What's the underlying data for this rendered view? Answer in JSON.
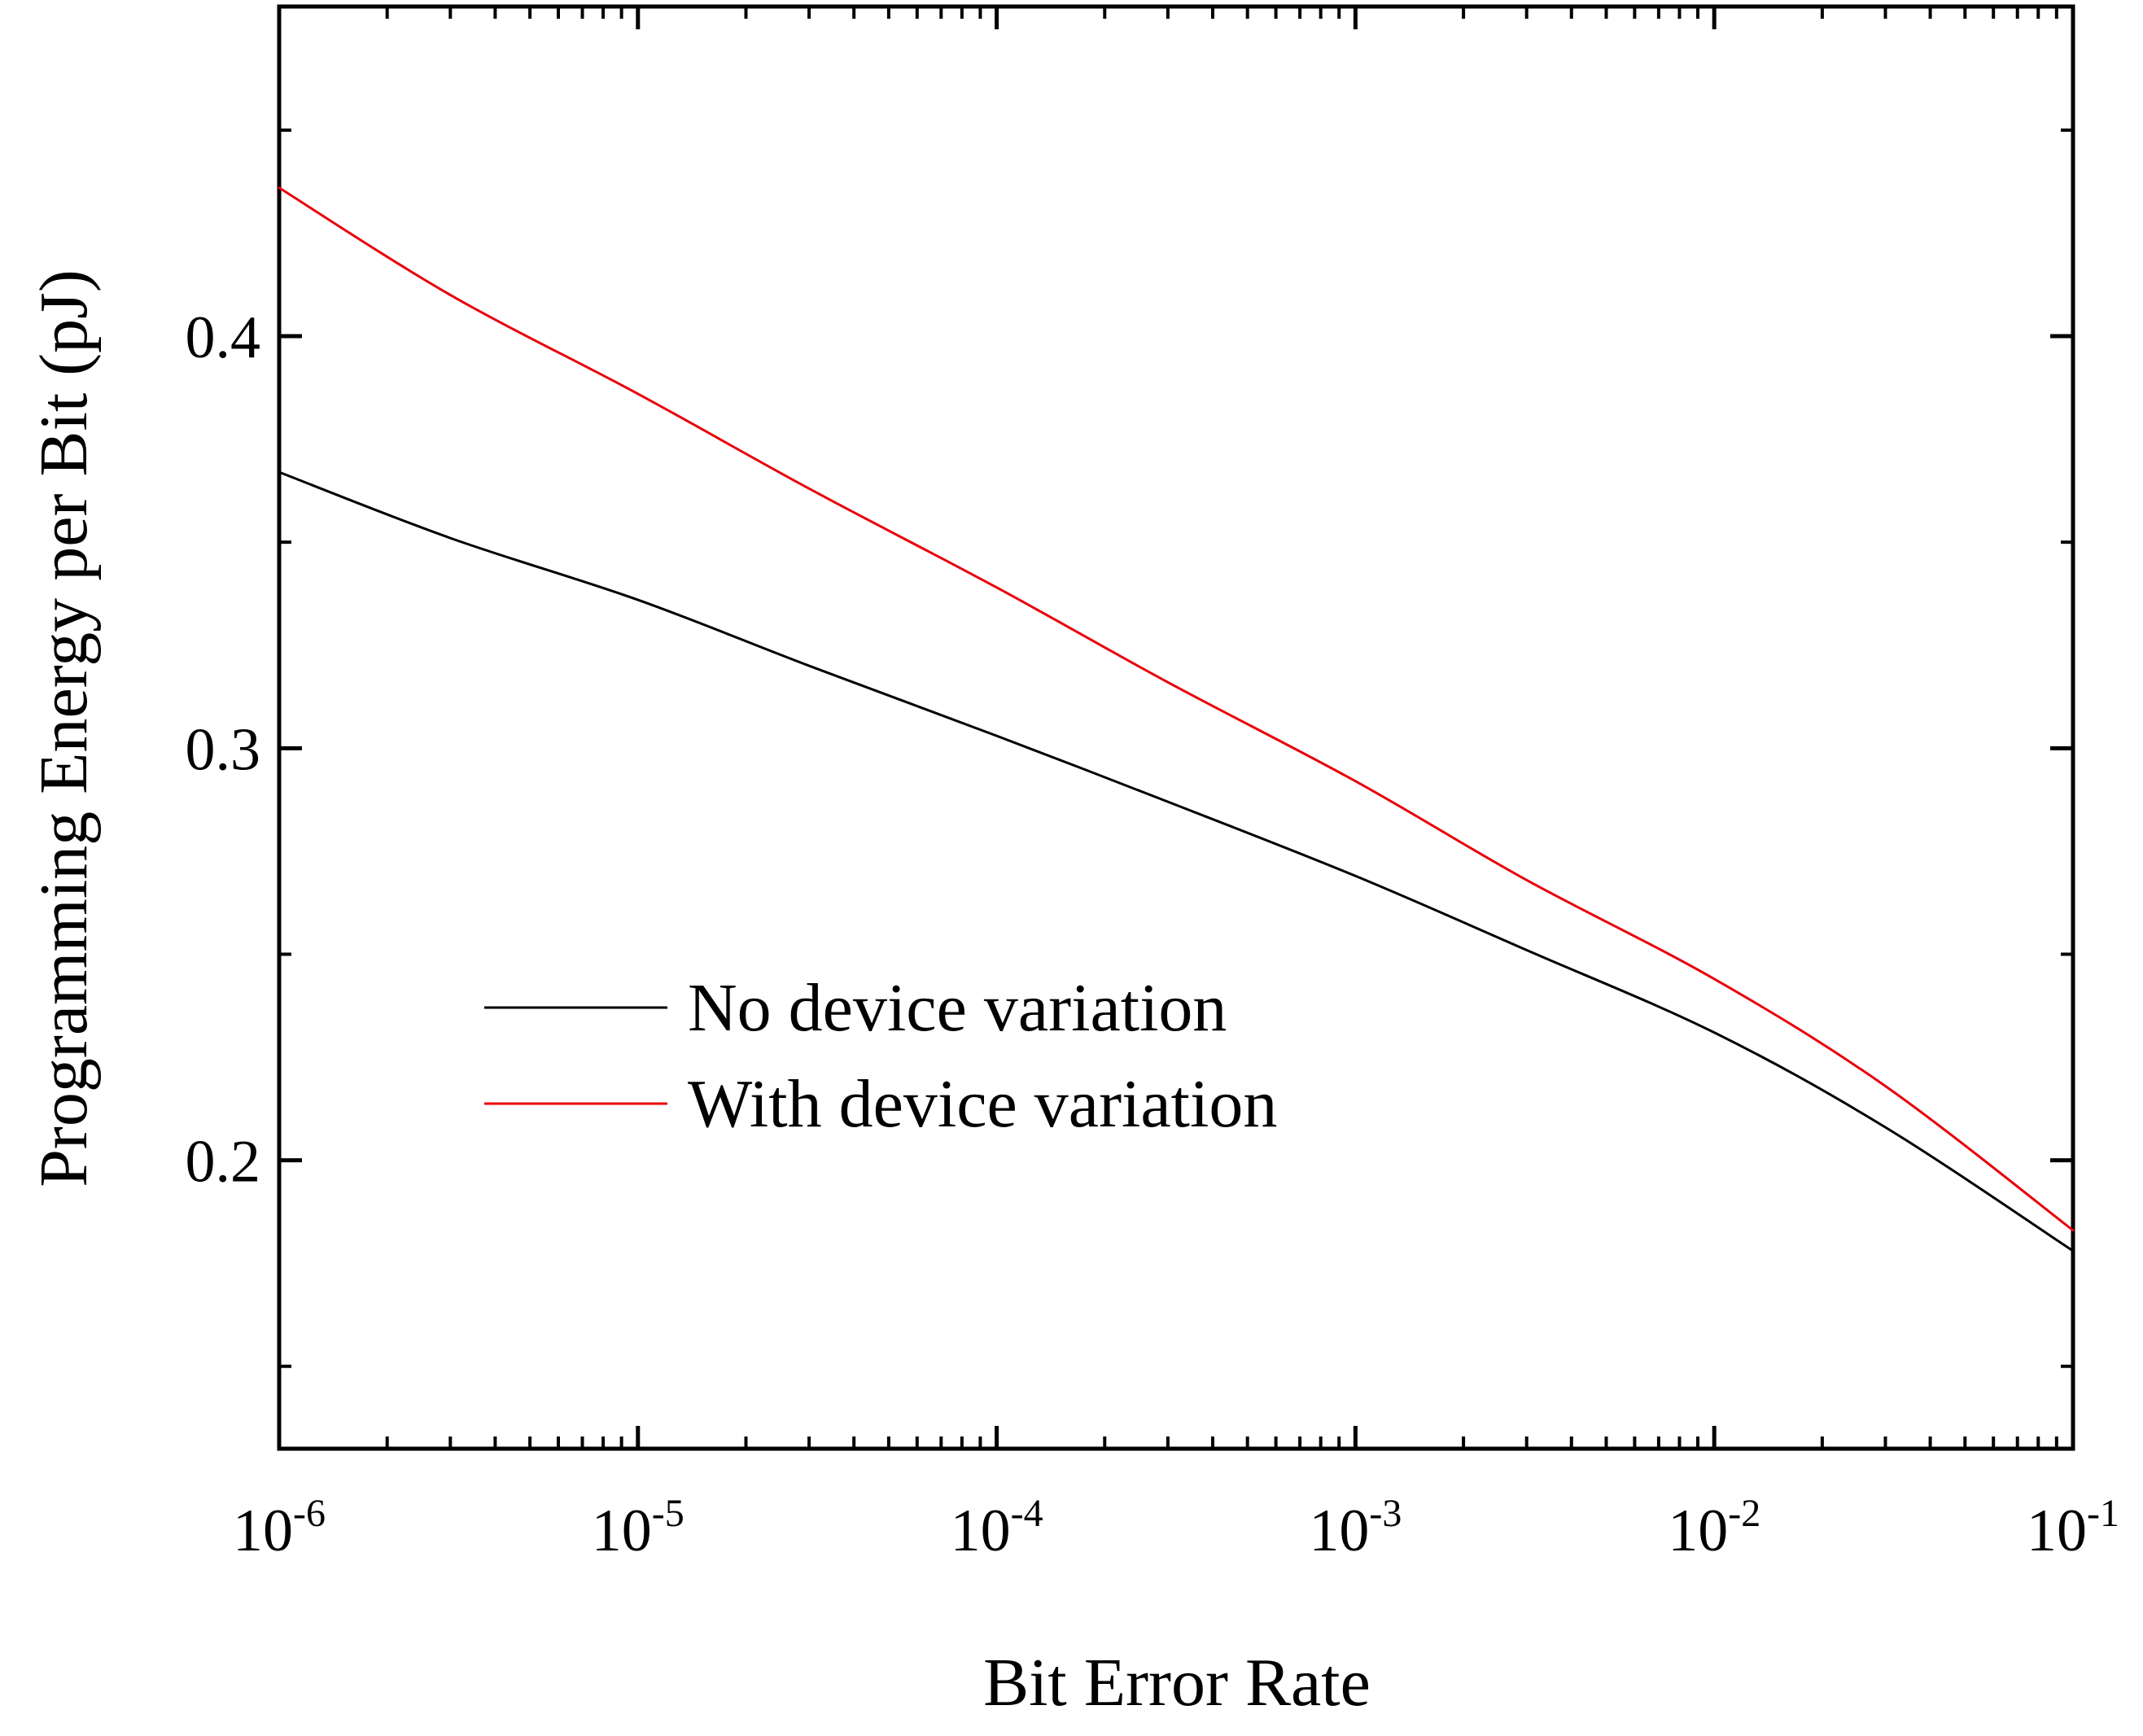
{
  "chart_data": {
    "type": "line",
    "title": "",
    "xlabel": "Bit Error Rate",
    "ylabel": "Programming Energy per Bit (pJ)",
    "x_scale": "log",
    "xlim": [
      1e-06,
      0.1
    ],
    "ylim": [
      0.13,
      0.48
    ],
    "x_ticks": [
      {
        "base": "10",
        "exp": "-6",
        "value": 1e-06
      },
      {
        "base": "10",
        "exp": "-5",
        "value": 1e-05
      },
      {
        "base": "10",
        "exp": "-4",
        "value": 0.0001
      },
      {
        "base": "10",
        "exp": "-3",
        "value": 0.001
      },
      {
        "base": "10",
        "exp": "-2",
        "value": 0.01
      },
      {
        "base": "10",
        "exp": "-1",
        "value": 0.1
      }
    ],
    "y_ticks": [
      {
        "label": "0.2",
        "value": 0.2
      },
      {
        "label": "0.3",
        "value": 0.3
      },
      {
        "label": "0.4",
        "value": 0.4
      }
    ],
    "y_minor_ticks": [
      0.15,
      0.25,
      0.35,
      0.45
    ],
    "grid": false,
    "legend_position": "center-left",
    "x": [
      1e-06,
      3e-06,
      1e-05,
      3e-05,
      0.0001,
      0.0003,
      0.001,
      0.003,
      0.01,
      0.03,
      0.1
    ],
    "series": [
      {
        "name": "No device variation",
        "color": "#000000",
        "values": [
          0.367,
          0.351,
          0.336,
          0.32,
          0.303,
          0.287,
          0.269,
          0.251,
          0.231,
          0.208,
          0.178
        ]
      },
      {
        "name": "With device variation",
        "color": "#e8000b",
        "values": [
          0.436,
          0.41,
          0.386,
          0.363,
          0.339,
          0.316,
          0.292,
          0.268,
          0.244,
          0.218,
          0.183
        ]
      }
    ]
  }
}
